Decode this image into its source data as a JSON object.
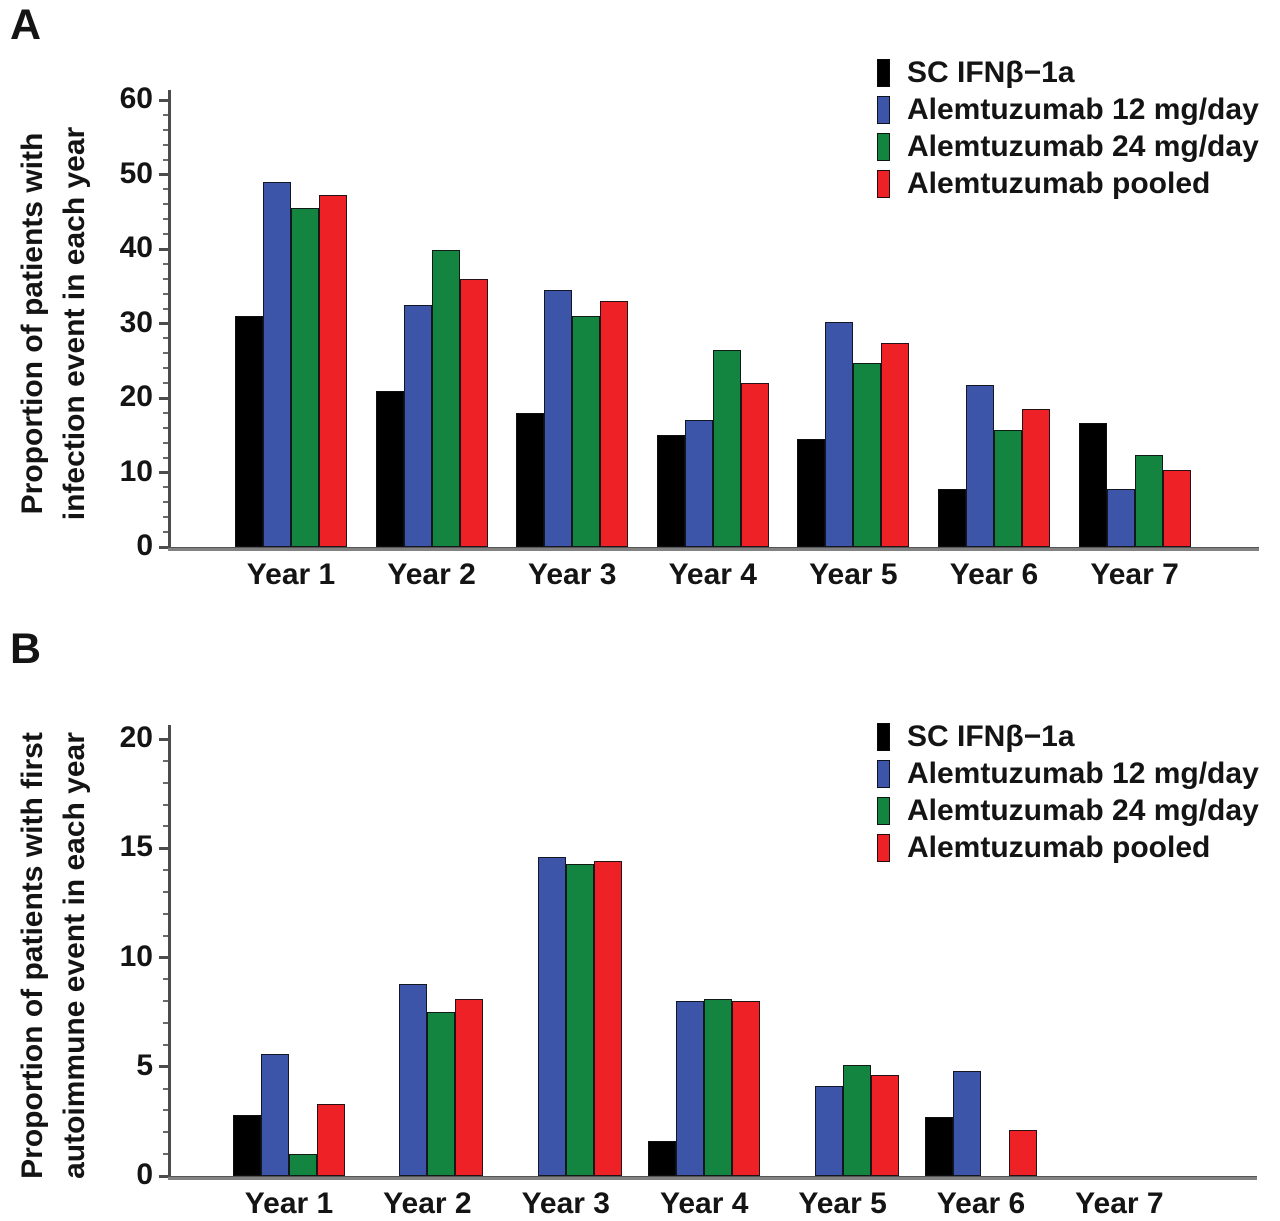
{
  "figure": {
    "panels": [
      {
        "letter": "A",
        "ylabel_lines": [
          "Proportion of patients  with",
          "infection event in each year"
        ]
      },
      {
        "letter": "B",
        "ylabel_lines": [
          "Proportion of patients with first",
          "autoimmune event in each year"
        ]
      }
    ]
  },
  "chart_data": [
    {
      "type": "bar",
      "panel": "A",
      "title": "",
      "xlabel": "",
      "ylabel": "Proportion of patients with infection event in each year",
      "categories": [
        "Year 1",
        "Year 2",
        "Year 3",
        "Year 4",
        "Year 5",
        "Year 6",
        "Year 7"
      ],
      "series": [
        {
          "name": "SC IFNβ−1a",
          "key": "sc-ifnb-1a",
          "color": "#000000",
          "values": [
            31.0,
            21.0,
            18.0,
            15.0,
            14.5,
            7.8,
            16.6
          ]
        },
        {
          "name": "Alemtuzumab 12 mg/day",
          "key": "alemtuzumab-12",
          "color": "#3C55A8",
          "values": [
            49.0,
            32.5,
            34.5,
            17.0,
            30.2,
            21.8,
            7.8
          ]
        },
        {
          "name": "Alemtuzumab 24 mg/day",
          "key": "alemtuzumab-24",
          "color": "#148540",
          "values": [
            45.5,
            39.8,
            31.0,
            26.5,
            24.7,
            15.7,
            12.4
          ]
        },
        {
          "name": "Alemtuzumab pooled",
          "key": "alemtuzumab-pooled",
          "color": "#EE2126",
          "values": [
            47.2,
            36.0,
            33.0,
            22.0,
            27.4,
            18.5,
            10.3
          ]
        }
      ],
      "ylim": [
        0,
        60
      ],
      "yticks": [
        0,
        10,
        20,
        30,
        40,
        50,
        60
      ],
      "minor_tick_step": 2,
      "grid": false,
      "legend_position": "top-right"
    },
    {
      "type": "bar",
      "panel": "B",
      "title": "",
      "xlabel": "",
      "ylabel": "Proportion of patients with first autoimmune event in each year",
      "categories": [
        "Year 1",
        "Year 2",
        "Year 3",
        "Year 4",
        "Year 5",
        "Year 6",
        "Year 7"
      ],
      "series": [
        {
          "name": "SC IFNβ−1a",
          "key": "sc-ifnb-1a",
          "color": "#000000",
          "values": [
            2.8,
            0,
            0,
            1.6,
            0,
            2.7,
            0
          ]
        },
        {
          "name": "Alemtuzumab 12 mg/day",
          "key": "alemtuzumab-12",
          "color": "#3C55A8",
          "values": [
            5.6,
            8.8,
            14.6,
            8.0,
            4.1,
            4.8,
            0
          ]
        },
        {
          "name": "Alemtuzumab 24 mg/day",
          "key": "alemtuzumab-24",
          "color": "#148540",
          "values": [
            1.0,
            7.5,
            14.3,
            8.1,
            5.1,
            0,
            0
          ]
        },
        {
          "name": "Alemtuzumab pooled",
          "key": "alemtuzumab-pooled",
          "color": "#EE2126",
          "values": [
            3.3,
            8.1,
            14.4,
            8.0,
            4.6,
            2.1,
            0
          ]
        }
      ],
      "ylim": [
        0,
        20
      ],
      "yticks": [
        0,
        5,
        10,
        15,
        20
      ],
      "minor_tick_step": 1,
      "grid": false,
      "legend_position": "top-right"
    }
  ]
}
